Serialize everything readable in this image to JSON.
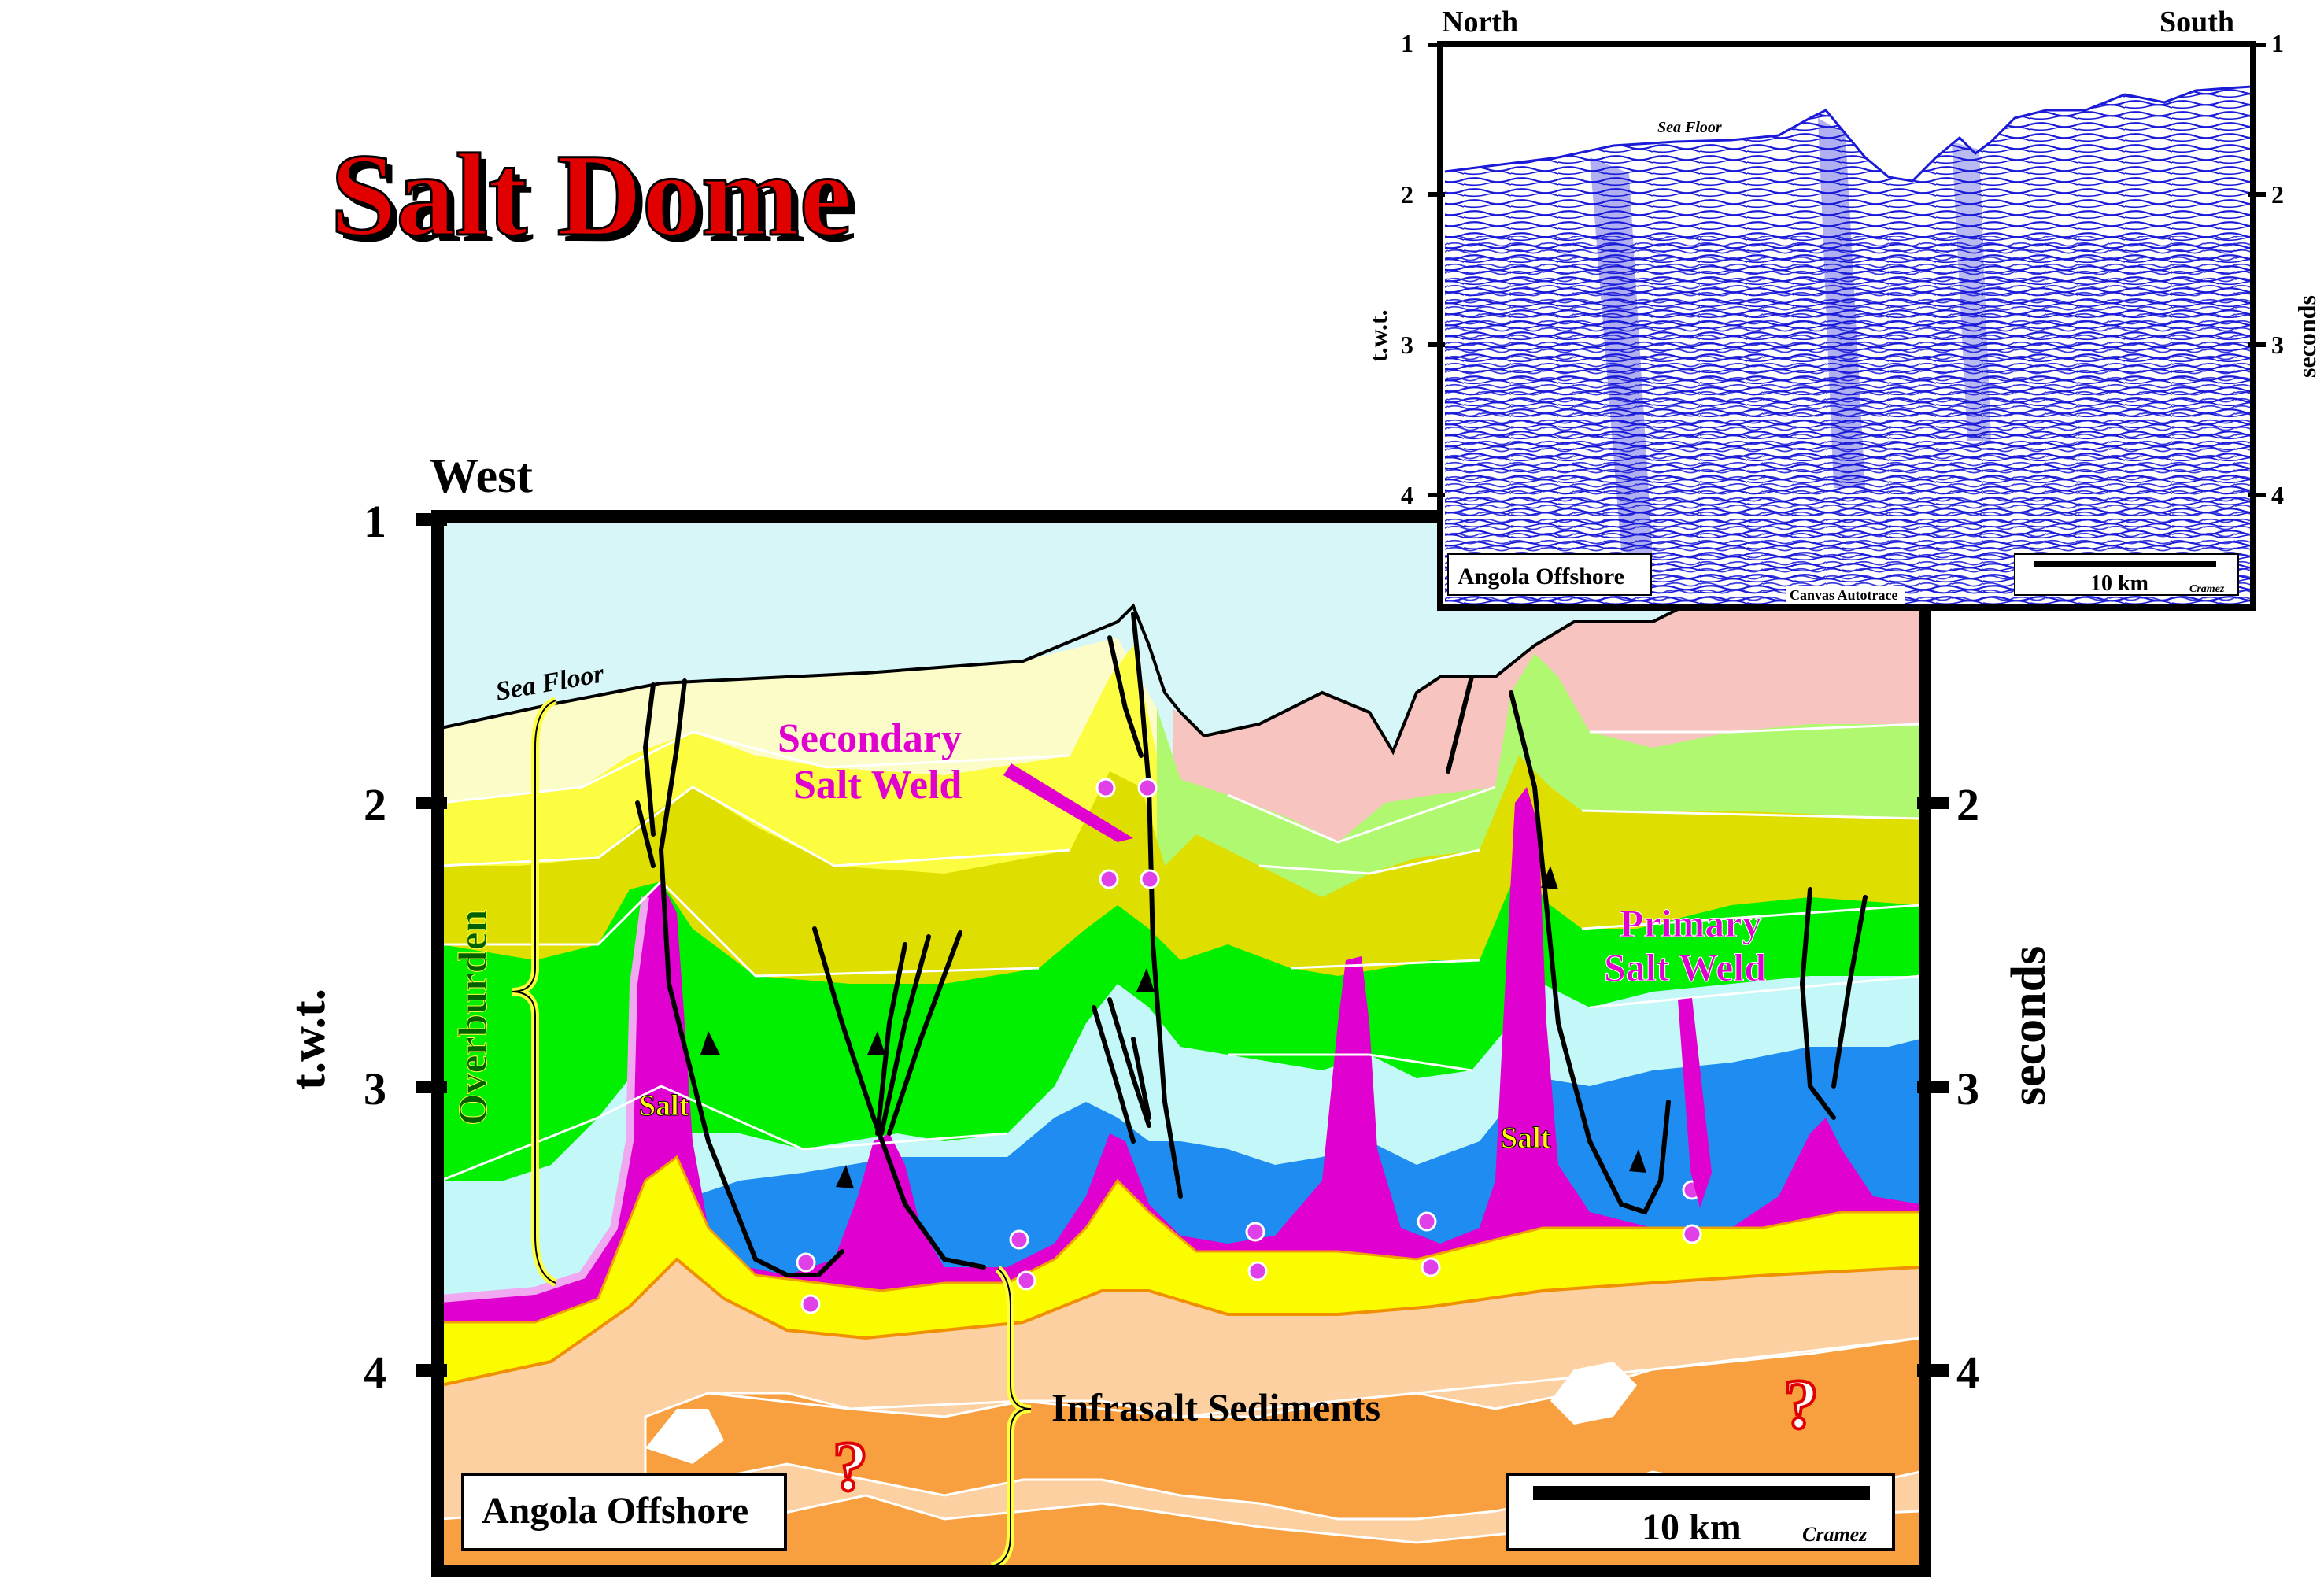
{
  "title": "Salt Dome",
  "main_section": {
    "direction_label": "West",
    "axis_name": "t.w.t.",
    "axis_unit": "seconds",
    "ticks": [
      "1",
      "2",
      "3",
      "4"
    ],
    "sea_floor": "Sea Floor",
    "overburden": "Overburden",
    "salt_labels": [
      "Salt",
      "Salt"
    ],
    "secondary_weld": [
      "Secondary",
      "Salt Weld"
    ],
    "primary_weld": [
      "Primary",
      "Salt Weld"
    ],
    "infrasalt": "Infrasalt Sediments",
    "unknown_marks": [
      "?",
      "?"
    ],
    "location": "Angola Offshore",
    "scale": "10 km",
    "author": "Cramez"
  },
  "seismic_inset": {
    "left_direction": "North",
    "right_direction": "South",
    "axis_name": "t.w.t.",
    "axis_unit": "seconds",
    "ticks": [
      "1",
      "2",
      "3",
      "4"
    ],
    "sea_floor": "Sea Floor",
    "location": "Angola Offshore",
    "processing": "Canvas Autotrace",
    "scale": "10 km",
    "author": "Cramez"
  },
  "colors": {
    "seawater": "#d6f6f8",
    "salt": "#e000d0",
    "weld_marker": "#e040e8",
    "seismic": "#1a1ad8",
    "title_fill": "#e00000"
  }
}
